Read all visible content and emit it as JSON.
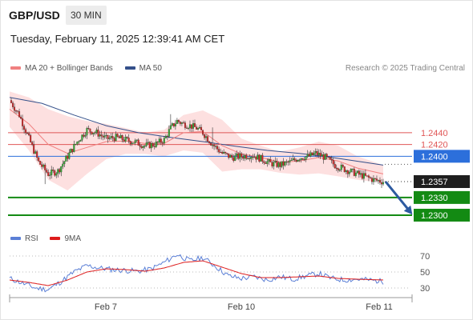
{
  "header": {
    "symbol": "GBP/USD",
    "interval": "30 MIN"
  },
  "datetime": "Tuesday, February 11, 2025 12:39:41 AM CET",
  "legend": {
    "ma20_label": "MA 20 + Bollinger Bands",
    "ma50_label": "MA 50",
    "ma20_color": "#f08080",
    "ma50_color": "#34508a"
  },
  "copyright": "Research © 2025 Trading Central",
  "rsi_legend": {
    "rsi_label": "RSI",
    "ma9_label": "9MA",
    "rsi_color": "#5b7fd6",
    "ma9_color": "#dd1c1c"
  },
  "chart_data": [
    {
      "type": "candlestick",
      "title": "",
      "ylim": [
        1.2285,
        1.2535
      ],
      "x_ticks": [
        "Feb 7",
        "Feb 10",
        "Feb 11"
      ],
      "current_price": "1.2357",
      "levels": [
        {
          "label": "1.2440",
          "value": 1.244,
          "kind": "resistance",
          "color": "#e05656"
        },
        {
          "label": "1.2420",
          "value": 1.242,
          "kind": "resistance",
          "color": "#e05656"
        },
        {
          "label": "1.2400",
          "value": 1.24,
          "kind": "pivot",
          "color": "#2c6fdb"
        },
        {
          "label": "1.2330",
          "value": 1.233,
          "kind": "support",
          "color": "#138a13"
        },
        {
          "label": "1.2300",
          "value": 1.23,
          "kind": "support",
          "color": "#138a13"
        }
      ],
      "forecast_arrow": {
        "from": 1.2357,
        "to": 1.2303,
        "direction": "down",
        "color": "#2d5aa0"
      },
      "close_path": [
        [
          0,
          1.2495
        ],
        [
          6,
          1.247
        ],
        [
          12,
          1.243
        ],
        [
          18,
          1.239
        ],
        [
          24,
          1.237
        ],
        [
          30,
          1.2375
        ],
        [
          36,
          1.24
        ],
        [
          42,
          1.2425
        ],
        [
          48,
          1.2445
        ],
        [
          54,
          1.244
        ],
        [
          60,
          1.243
        ],
        [
          66,
          1.2432
        ],
        [
          72,
          1.2428
        ],
        [
          78,
          1.2424
        ],
        [
          84,
          1.2418
        ],
        [
          90,
          1.242
        ],
        [
          96,
          1.2428
        ],
        [
          100,
          1.2448
        ],
        [
          104,
          1.246
        ],
        [
          108,
          1.2455
        ],
        [
          112,
          1.2452
        ],
        [
          116,
          1.2448
        ],
        [
          120,
          1.244
        ],
        [
          126,
          1.242
        ],
        [
          132,
          1.2405
        ],
        [
          138,
          1.2398
        ],
        [
          144,
          1.24
        ],
        [
          150,
          1.2402
        ],
        [
          156,
          1.2396
        ],
        [
          162,
          1.2388
        ],
        [
          168,
          1.2385
        ],
        [
          174,
          1.239
        ],
        [
          180,
          1.2398
        ],
        [
          186,
          1.24
        ],
        [
          190,
          1.2405
        ],
        [
          196,
          1.2398
        ],
        [
          202,
          1.2385
        ],
        [
          208,
          1.2378
        ],
        [
          214,
          1.2372
        ],
        [
          220,
          1.2366
        ],
        [
          226,
          1.236
        ],
        [
          232,
          1.2357
        ]
      ],
      "ma20_path": [
        [
          0,
          1.248
        ],
        [
          12,
          1.2455
        ],
        [
          24,
          1.242
        ],
        [
          36,
          1.2405
        ],
        [
          48,
          1.2415
        ],
        [
          60,
          1.2425
        ],
        [
          72,
          1.2426
        ],
        [
          84,
          1.2422
        ],
        [
          96,
          1.2422
        ],
        [
          108,
          1.244
        ],
        [
          120,
          1.2442
        ],
        [
          132,
          1.2418
        ],
        [
          144,
          1.2404
        ],
        [
          156,
          1.2398
        ],
        [
          168,
          1.239
        ],
        [
          180,
          1.2392
        ],
        [
          192,
          1.2398
        ],
        [
          204,
          1.2392
        ],
        [
          216,
          1.238
        ],
        [
          232,
          1.237
        ]
      ],
      "bb_upper_path": [
        [
          0,
          1.251
        ],
        [
          12,
          1.25
        ],
        [
          24,
          1.248
        ],
        [
          36,
          1.2468
        ],
        [
          48,
          1.246
        ],
        [
          60,
          1.2455
        ],
        [
          72,
          1.2448
        ],
        [
          84,
          1.244
        ],
        [
          96,
          1.2445
        ],
        [
          108,
          1.247
        ],
        [
          120,
          1.2478
        ],
        [
          132,
          1.2462
        ],
        [
          144,
          1.243
        ],
        [
          156,
          1.2418
        ],
        [
          168,
          1.2408
        ],
        [
          180,
          1.2415
        ],
        [
          192,
          1.2425
        ],
        [
          204,
          1.2418
        ],
        [
          216,
          1.24
        ],
        [
          232,
          1.2385
        ]
      ],
      "bb_lower_path": [
        [
          0,
          1.245
        ],
        [
          12,
          1.241
        ],
        [
          24,
          1.236
        ],
        [
          36,
          1.2342
        ],
        [
          48,
          1.237
        ],
        [
          60,
          1.2395
        ],
        [
          72,
          1.2404
        ],
        [
          84,
          1.2404
        ],
        [
          96,
          1.24
        ],
        [
          108,
          1.241
        ],
        [
          120,
          1.2406
        ],
        [
          132,
          1.2374
        ],
        [
          144,
          1.2378
        ],
        [
          156,
          1.2378
        ],
        [
          168,
          1.2372
        ],
        [
          180,
          1.2369
        ],
        [
          192,
          1.2371
        ],
        [
          204,
          1.2366
        ],
        [
          216,
          1.236
        ],
        [
          232,
          1.2355
        ]
      ],
      "ma50_path": [
        [
          0,
          1.25
        ],
        [
          20,
          1.249
        ],
        [
          40,
          1.247
        ],
        [
          60,
          1.2452
        ],
        [
          80,
          1.244
        ],
        [
          100,
          1.2432
        ],
        [
          120,
          1.2425
        ],
        [
          140,
          1.2417
        ],
        [
          160,
          1.241
        ],
        [
          180,
          1.2405
        ],
        [
          200,
          1.2398
        ],
        [
          220,
          1.239
        ],
        [
          232,
          1.2385
        ]
      ]
    },
    {
      "type": "line",
      "title": "",
      "ylim": [
        20,
        78
      ],
      "y_ticks": [
        "70",
        "50",
        "30"
      ],
      "series": [
        {
          "name": "RSI",
          "values": [
            [
              0,
              42
            ],
            [
              8,
              36
            ],
            [
              16,
              30
            ],
            [
              24,
              28
            ],
            [
              32,
              38
            ],
            [
              40,
              50
            ],
            [
              48,
              58
            ],
            [
              56,
              55
            ],
            [
              64,
              53
            ],
            [
              72,
              52
            ],
            [
              80,
              51
            ],
            [
              88,
              54
            ],
            [
              96,
              62
            ],
            [
              104,
              72
            ],
            [
              112,
              64
            ],
            [
              120,
              68
            ],
            [
              128,
              57
            ],
            [
              136,
              45
            ],
            [
              144,
              42
            ],
            [
              152,
              44
            ],
            [
              160,
              40
            ],
            [
              168,
              44
            ],
            [
              176,
              41
            ],
            [
              184,
              45
            ],
            [
              192,
              48
            ],
            [
              200,
              42
            ],
            [
              208,
              40
            ],
            [
              216,
              41
            ],
            [
              224,
              40
            ],
            [
              232,
              38
            ]
          ]
        },
        {
          "name": "9MA",
          "values": [
            [
              0,
              40
            ],
            [
              12,
              37
            ],
            [
              24,
              33
            ],
            [
              36,
              40
            ],
            [
              48,
              50
            ],
            [
              60,
              54
            ],
            [
              72,
              53
            ],
            [
              84,
              51
            ],
            [
              96,
              55
            ],
            [
              108,
              62
            ],
            [
              120,
              64
            ],
            [
              132,
              56
            ],
            [
              144,
              48
            ],
            [
              156,
              43
            ],
            [
              168,
              43
            ],
            [
              180,
              44
            ],
            [
              192,
              45
            ],
            [
              204,
              42
            ],
            [
              216,
              41
            ],
            [
              232,
              40
            ]
          ]
        }
      ]
    }
  ]
}
